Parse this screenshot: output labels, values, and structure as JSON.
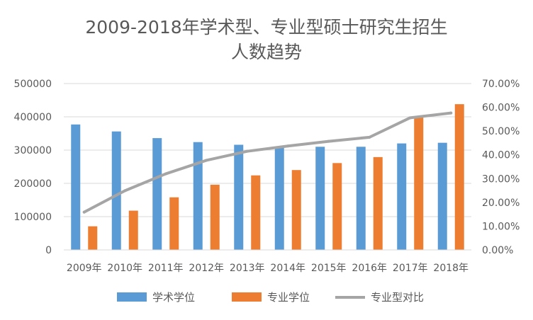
{
  "chart_data": {
    "type": "bar",
    "title_line1": "2009-2018年学术型、专业型硕士研究生招生",
    "title_line2": "人数趋势",
    "categories": [
      "2009年",
      "2010年",
      "2011年",
      "2012年",
      "2013年",
      "2014年",
      "2015年",
      "2016年",
      "2017年",
      "2018年"
    ],
    "series": [
      {
        "name": "学术学位",
        "type": "bar",
        "axis": "left",
        "color": "#5B9BD5",
        "values": [
          377000,
          356000,
          336000,
          324000,
          316000,
          310000,
          310000,
          310000,
          320000,
          322000
        ]
      },
      {
        "name": "专业学位",
        "type": "bar",
        "axis": "left",
        "color": "#ED7D31",
        "values": [
          71000,
          118000,
          158000,
          196000,
          224000,
          240000,
          261000,
          279000,
          400000,
          438000
        ]
      },
      {
        "name": "专业型对比",
        "type": "line",
        "axis": "right",
        "color": "#A5A5A5",
        "values": [
          0.159,
          0.249,
          0.32,
          0.377,
          0.415,
          0.437,
          0.457,
          0.474,
          0.556,
          0.576
        ]
      }
    ],
    "left_axis": {
      "ylim": [
        0,
        500000
      ],
      "ticks": [
        "0",
        "100000",
        "200000",
        "300000",
        "400000",
        "500000"
      ]
    },
    "right_axis": {
      "ylim": [
        0,
        0.7
      ],
      "ticks": [
        "0.00%",
        "10.00%",
        "20.00%",
        "30.00%",
        "40.00%",
        "50.00%",
        "60.00%",
        "70.00%"
      ]
    },
    "legend_position": "bottom",
    "grid": true
  }
}
